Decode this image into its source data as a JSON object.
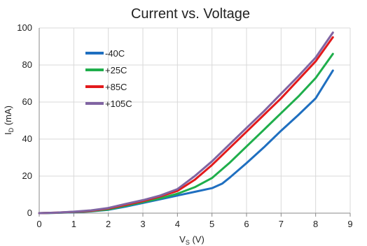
{
  "chart_data": {
    "type": "line",
    "title": "Current vs. Voltage",
    "xlabel": {
      "main": "V",
      "sub": "S",
      "unit": " (V)"
    },
    "ylabel": {
      "main": "I",
      "sub": "D",
      "unit": " (mA)"
    },
    "xlim": [
      0,
      9
    ],
    "ylim": [
      0,
      100
    ],
    "xticks": [
      0,
      1,
      2,
      3,
      4,
      5,
      6,
      7,
      8,
      9
    ],
    "yticks": [
      0,
      20,
      40,
      60,
      80,
      100
    ],
    "grid": true,
    "legend_position": "upper-left",
    "series": [
      {
        "name": "-40C",
        "color": "#1f6fc0",
        "points": [
          [
            0,
            0
          ],
          [
            0.5,
            0.2
          ],
          [
            1,
            0.5
          ],
          [
            1.5,
            1
          ],
          [
            2,
            1.8
          ],
          [
            2.5,
            3.5
          ],
          [
            3,
            5.5
          ],
          [
            3.5,
            7.5
          ],
          [
            4,
            9.5
          ],
          [
            4.5,
            11.5
          ],
          [
            5,
            13.5
          ],
          [
            5.3,
            16
          ],
          [
            5.5,
            19
          ],
          [
            6,
            27
          ],
          [
            6.5,
            35.5
          ],
          [
            7,
            44.5
          ],
          [
            7.5,
            53
          ],
          [
            8,
            62
          ],
          [
            8.5,
            77
          ]
        ]
      },
      {
        "name": "+25C",
        "color": "#1fae4b",
        "points": [
          [
            0,
            0
          ],
          [
            0.5,
            0.2
          ],
          [
            1,
            0.6
          ],
          [
            1.5,
            1.1
          ],
          [
            2,
            2
          ],
          [
            2.5,
            4
          ],
          [
            3,
            6
          ],
          [
            3.5,
            8
          ],
          [
            4,
            10.5
          ],
          [
            4.5,
            14
          ],
          [
            5,
            19
          ],
          [
            5.5,
            27
          ],
          [
            6,
            36
          ],
          [
            6.5,
            45
          ],
          [
            7,
            54
          ],
          [
            7.5,
            63
          ],
          [
            8,
            73
          ],
          [
            8.5,
            86
          ]
        ]
      },
      {
        "name": "+85C",
        "color": "#e31a1c",
        "points": [
          [
            0,
            0
          ],
          [
            0.5,
            0.25
          ],
          [
            1,
            0.7
          ],
          [
            1.5,
            1.3
          ],
          [
            2,
            2.5
          ],
          [
            2.5,
            4.5
          ],
          [
            3,
            6.5
          ],
          [
            3.5,
            9
          ],
          [
            4,
            12
          ],
          [
            4.5,
            18
          ],
          [
            5,
            26
          ],
          [
            5.5,
            35
          ],
          [
            6,
            44
          ],
          [
            6.5,
            53
          ],
          [
            7,
            62
          ],
          [
            7.5,
            72
          ],
          [
            8,
            82
          ],
          [
            8.5,
            95
          ]
        ]
      },
      {
        "name": "+105C",
        "color": "#8064a2",
        "points": [
          [
            0,
            0
          ],
          [
            0.5,
            0.3
          ],
          [
            1,
            0.8
          ],
          [
            1.5,
            1.5
          ],
          [
            2,
            2.8
          ],
          [
            2.5,
            5
          ],
          [
            3,
            7
          ],
          [
            3.5,
            9.5
          ],
          [
            4,
            13
          ],
          [
            4.5,
            20
          ],
          [
            5,
            28
          ],
          [
            5.5,
            37
          ],
          [
            6,
            46
          ],
          [
            6.5,
            55
          ],
          [
            7,
            64.5
          ],
          [
            7.5,
            74
          ],
          [
            8,
            84
          ],
          [
            8.5,
            97.5
          ]
        ]
      }
    ]
  }
}
